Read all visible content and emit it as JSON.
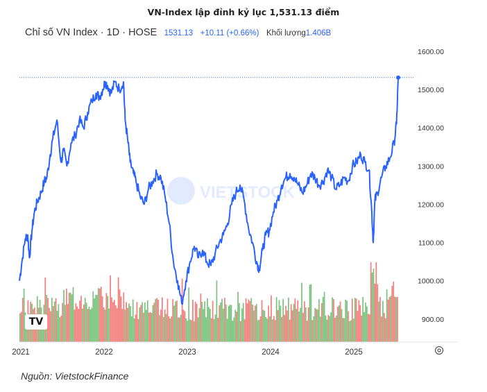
{
  "caption": "VN-Index lập đỉnh kỷ lục 1,531.13 điểm",
  "source": "Nguồn: VietstockFinance",
  "legend": {
    "symbol": "Chỉ số VN Index · 1D · HOSE",
    "price": "1531.13",
    "change": "+10.11 (+0.66%)",
    "volume_label": "Khối lượng",
    "volume_value": "1.406B"
  },
  "logo": "TV",
  "watermark": "VIETSTOCK",
  "colors": {
    "line": "#2962ff",
    "vol_up": "#4caf50",
    "vol_down": "#ef5350",
    "axis": "#333333"
  },
  "chart_data": {
    "type": "line",
    "title": "",
    "xlabel": "",
    "ylabel": "",
    "x_ticks": [
      "2021",
      "2022",
      "2023",
      "2024",
      "2025"
    ],
    "y_ticks": [
      "900.00",
      "1000.00",
      "1100.00",
      "1200.00",
      "1300.00",
      "1400.00",
      "1500.00",
      "1600.00"
    ],
    "ylim": [
      840,
      1625
    ],
    "xlim": [
      2021.0,
      2025.75
    ],
    "last_value_line": 1531.13,
    "series": [
      {
        "values_x": [
          2021.0,
          2021.03,
          2021.07,
          2021.1,
          2021.12,
          2021.15,
          2021.18,
          2021.22,
          2021.26,
          2021.3,
          2021.33,
          2021.37,
          2021.4,
          2021.45,
          2021.5,
          2021.53,
          2021.57,
          2021.62,
          2021.67,
          2021.72,
          2021.77,
          2021.82,
          2021.87,
          2021.92,
          2021.96,
          2022.0,
          2022.03,
          2022.06,
          2022.1,
          2022.15,
          2022.2,
          2022.25,
          2022.27,
          2022.3,
          2022.33,
          2022.37,
          2022.4,
          2022.45,
          2022.5,
          2022.55,
          2022.6,
          2022.65,
          2022.7,
          2022.75,
          2022.8,
          2022.85,
          2022.9,
          2022.95,
          2023.0,
          2023.05,
          2023.1,
          2023.15,
          2023.2,
          2023.25,
          2023.3,
          2023.35,
          2023.4,
          2023.45,
          2023.5,
          2023.55,
          2023.6,
          2023.65,
          2023.7,
          2023.75,
          2023.8,
          2023.85,
          2023.88,
          2023.92,
          2023.96,
          2024.0,
          2024.05,
          2024.1,
          2024.15,
          2024.2,
          2024.25,
          2024.3,
          2024.35,
          2024.4,
          2024.45,
          2024.5,
          2024.55,
          2024.6,
          2024.65,
          2024.7,
          2024.75,
          2024.8,
          2024.85,
          2024.9,
          2024.95,
          2025.0,
          2025.05,
          2025.1,
          2025.15,
          2025.2,
          2025.23,
          2025.25,
          2025.27,
          2025.3,
          2025.35,
          2025.4,
          2025.45,
          2025.5,
          2025.53,
          2025.55
        ],
        "values_y": [
          1000,
          1050,
          1110,
          1120,
          1060,
          1130,
          1180,
          1210,
          1230,
          1260,
          1270,
          1330,
          1370,
          1420,
          1310,
          1340,
          1300,
          1360,
          1380,
          1420,
          1400,
          1440,
          1470,
          1490,
          1480,
          1500,
          1520,
          1510,
          1490,
          1520,
          1500,
          1520,
          1420,
          1370,
          1310,
          1280,
          1260,
          1220,
          1200,
          1240,
          1260,
          1280,
          1270,
          1220,
          1150,
          1050,
          1000,
          940,
          1000,
          1050,
          1090,
          1060,
          1080,
          1050,
          1040,
          1070,
          1100,
          1120,
          1150,
          1200,
          1230,
          1250,
          1210,
          1140,
          1100,
          1050,
          1030,
          1080,
          1120,
          1130,
          1180,
          1210,
          1250,
          1270,
          1280,
          1270,
          1250,
          1230,
          1250,
          1280,
          1270,
          1250,
          1260,
          1290,
          1270,
          1240,
          1250,
          1270,
          1260,
          1300,
          1310,
          1330,
          1310,
          1290,
          1190,
          1100,
          1210,
          1230,
          1270,
          1300,
          1320,
          1360,
          1410,
          1531.13
        ]
      }
    ],
    "volume_note": "volume bars (green up, red down)"
  }
}
